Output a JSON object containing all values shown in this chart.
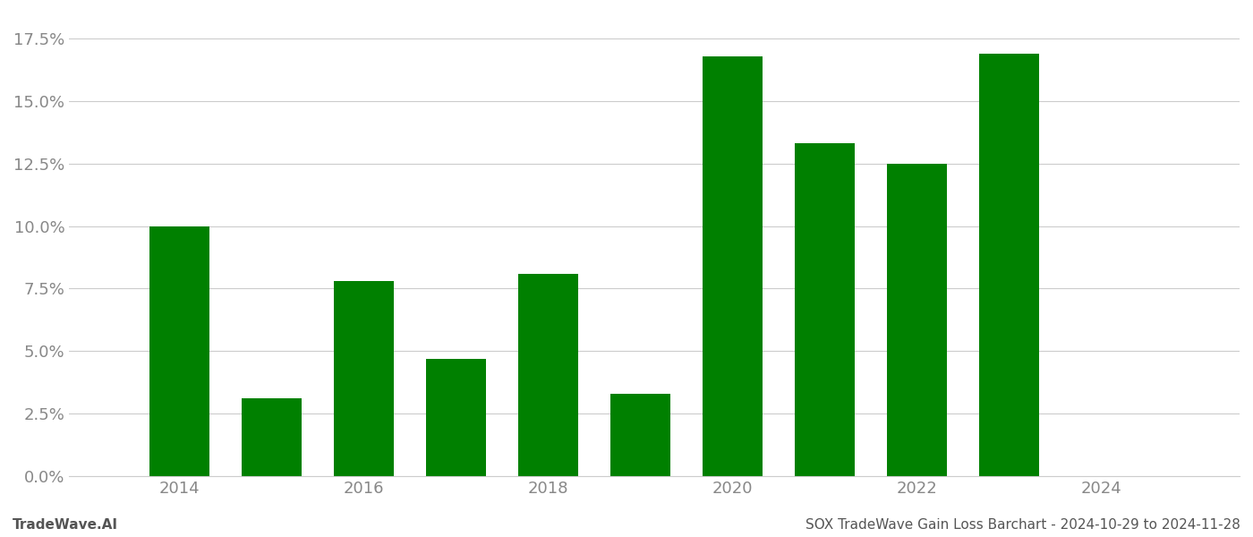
{
  "years": [
    2014,
    2015,
    2016,
    2017,
    2018,
    2019,
    2020,
    2021,
    2022,
    2023
  ],
  "values": [
    0.1,
    0.031,
    0.078,
    0.047,
    0.081,
    0.033,
    0.168,
    0.133,
    0.125,
    0.169
  ],
  "bar_color": "#008000",
  "background_color": "#ffffff",
  "grid_color": "#cccccc",
  "axis_label_color": "#888888",
  "ylim": [
    0,
    0.185
  ],
  "yticks": [
    0.0,
    0.025,
    0.05,
    0.075,
    0.1,
    0.125,
    0.15,
    0.175
  ],
  "xticks": [
    2014,
    2016,
    2018,
    2020,
    2022,
    2024
  ],
  "footer_left": "TradeWave.AI",
  "footer_right": "SOX TradeWave Gain Loss Barchart - 2024-10-29 to 2024-11-28",
  "footer_color": "#555555",
  "bar_width": 0.65,
  "xlim_left": 2012.8,
  "xlim_right": 2025.5
}
